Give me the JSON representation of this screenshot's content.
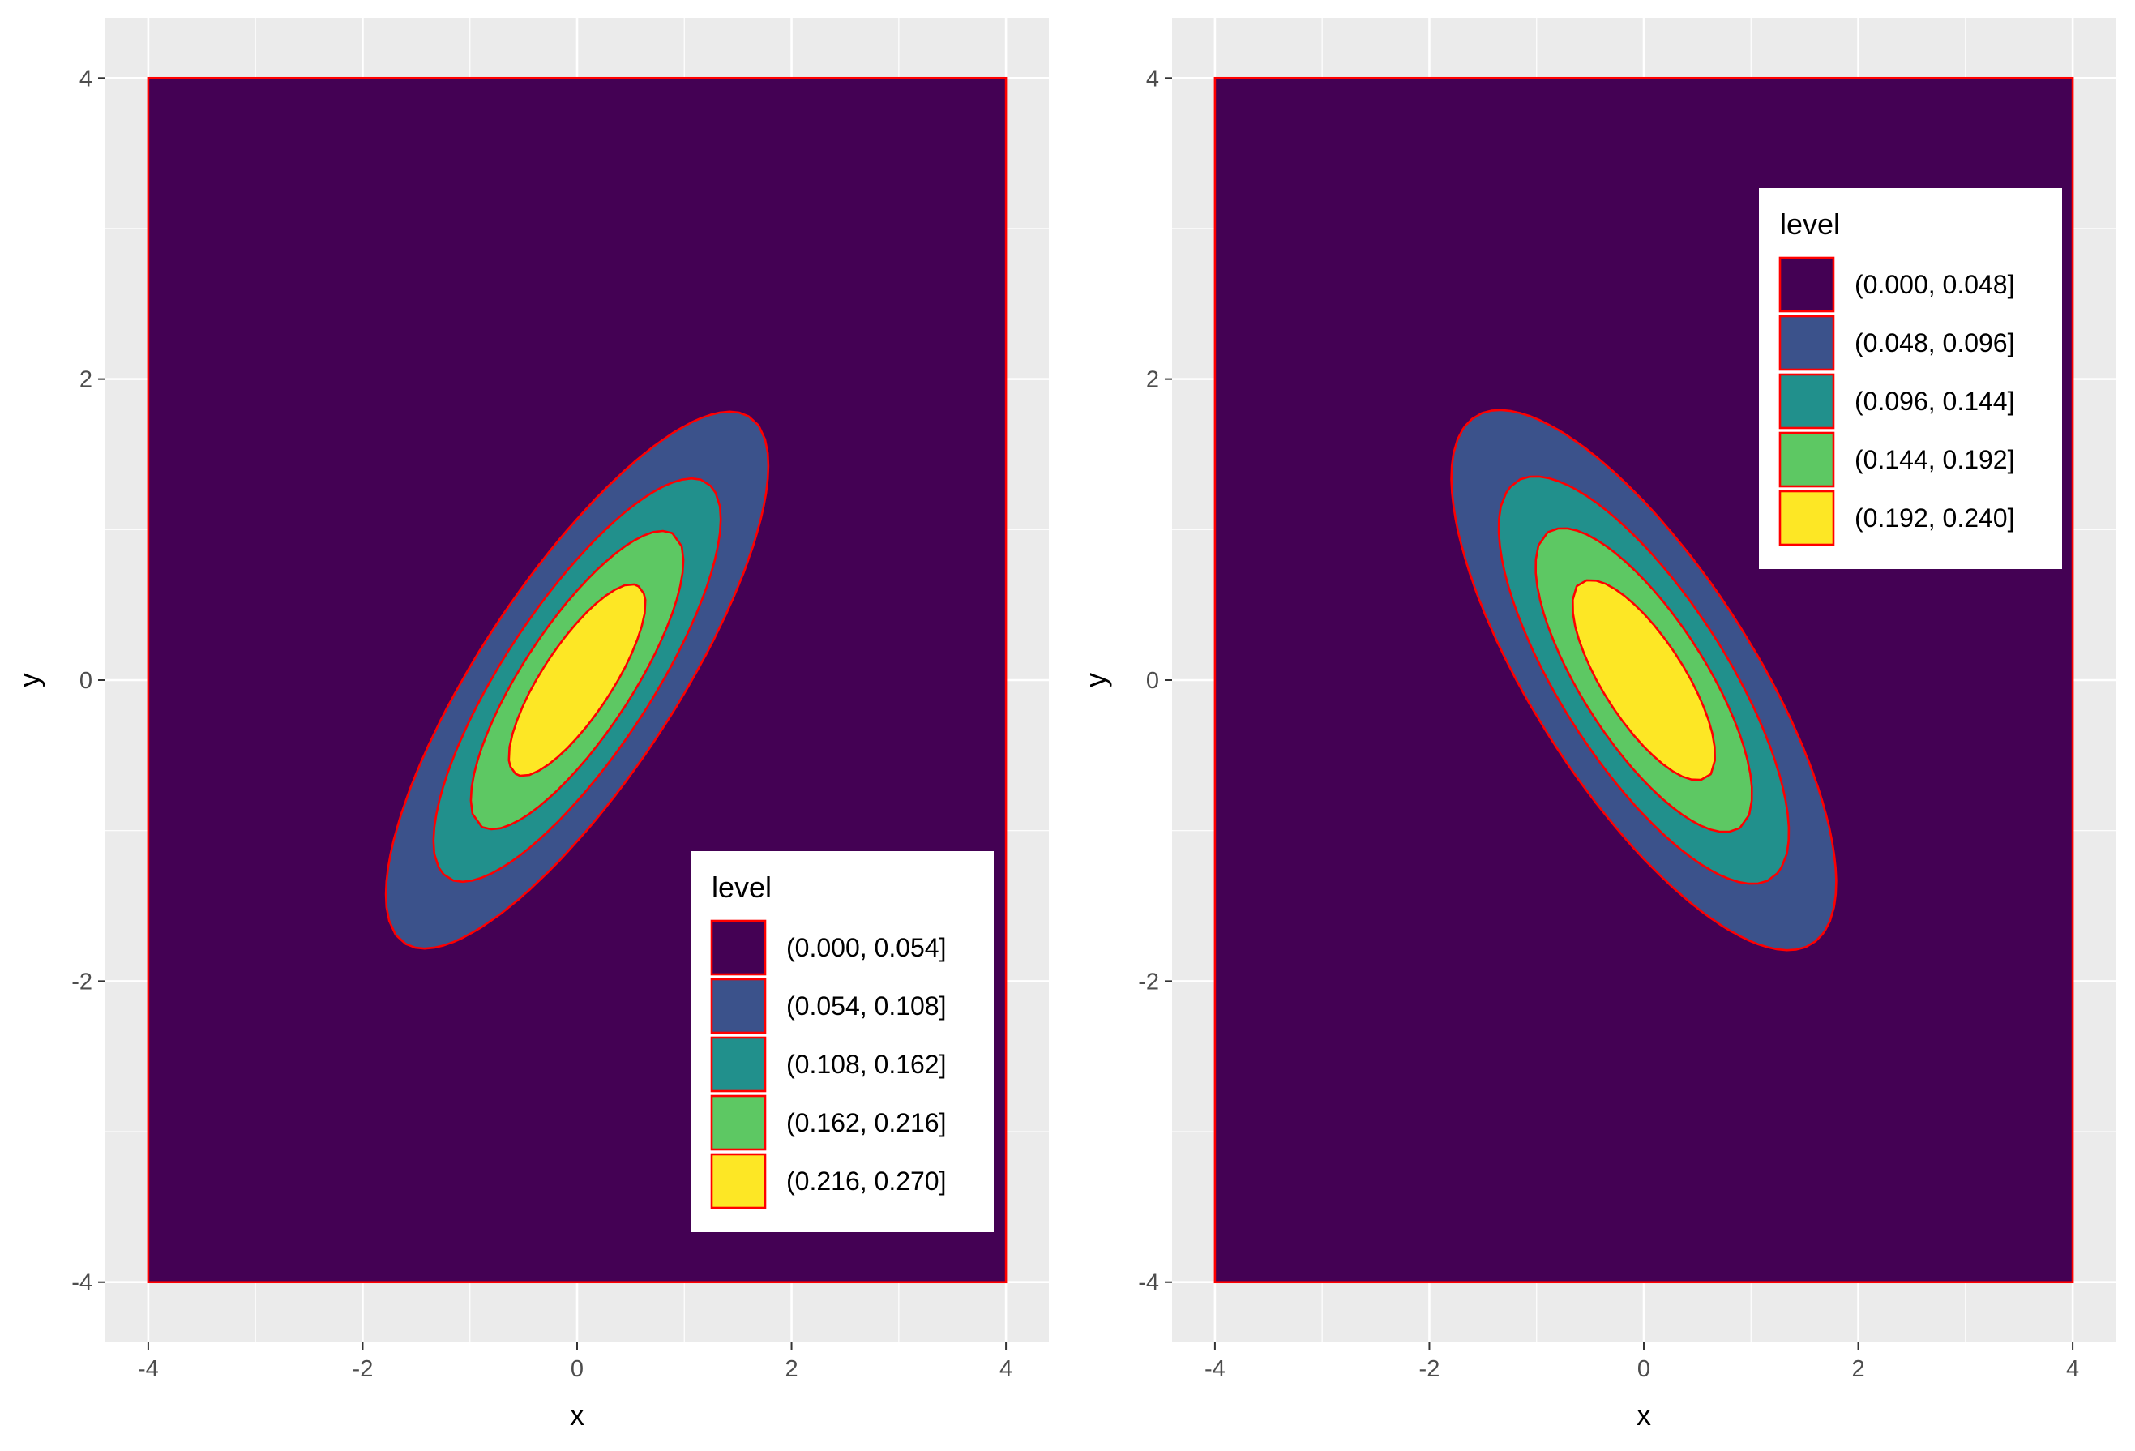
{
  "chart_data": [
    {
      "type": "filled-contour",
      "xlabel": "x",
      "ylabel": "y",
      "xlim": [
        -4.4,
        4.4
      ],
      "ylim": [
        -4.4,
        4.4
      ],
      "x_ticks": [
        -4,
        -2,
        0,
        2,
        4
      ],
      "y_ticks": [
        -4,
        -2,
        0,
        2,
        4
      ],
      "x_tick_labels": [
        "-4",
        "-2",
        "0",
        "2",
        "4"
      ],
      "y_tick_labels": [
        "-4",
        "-2",
        "0",
        "2",
        "4"
      ],
      "grid": true,
      "data_extent": {
        "x": [
          -4,
          4
        ],
        "y": [
          -4,
          4
        ]
      },
      "density": {
        "distribution": "bivariate normal",
        "mean": [
          0,
          0
        ],
        "correlation": 0.8,
        "peak_level": 0.265
      },
      "legend": {
        "title": "level",
        "placement": "bottom-right inside",
        "entries": [
          {
            "label": "(0.000, 0.054]",
            "color": "#440154"
          },
          {
            "label": "(0.054, 0.108]",
            "color": "#3B528B"
          },
          {
            "label": "(0.108, 0.162]",
            "color": "#21908C"
          },
          {
            "label": "(0.162, 0.216]",
            "color": "#5DC863"
          },
          {
            "label": "(0.216, 0.270]",
            "color": "#FDE725"
          }
        ]
      },
      "breaks": [
        0.054,
        0.108,
        0.162,
        0.216
      ],
      "outline_color": "#FF0000",
      "panel_background": "#EBEBEB",
      "gridline_color": "#FFFFFF"
    },
    {
      "type": "filled-contour",
      "xlabel": "x",
      "ylabel": "y",
      "xlim": [
        -4.4,
        4.4
      ],
      "ylim": [
        -4.4,
        4.4
      ],
      "x_ticks": [
        -4,
        -2,
        0,
        2,
        4
      ],
      "y_ticks": [
        -4,
        -2,
        0,
        2,
        4
      ],
      "x_tick_labels": [
        "-4",
        "-2",
        "0",
        "2",
        "4"
      ],
      "y_tick_labels": [
        "-4",
        "-2",
        "0",
        "2",
        "4"
      ],
      "grid": true,
      "data_extent": {
        "x": [
          -4,
          4
        ],
        "y": [
          -4,
          4
        ]
      },
      "density": {
        "distribution": "bivariate normal",
        "mean": [
          0,
          0
        ],
        "correlation": -0.75,
        "peak_level": 0.24
      },
      "legend": {
        "title": "level",
        "placement": "top-right inside",
        "entries": [
          {
            "label": "(0.000, 0.048]",
            "color": "#440154"
          },
          {
            "label": "(0.048, 0.096]",
            "color": "#3B528B"
          },
          {
            "label": "(0.096, 0.144]",
            "color": "#21908C"
          },
          {
            "label": "(0.144, 0.192]",
            "color": "#5DC863"
          },
          {
            "label": "(0.192, 0.240]",
            "color": "#FDE725"
          }
        ]
      },
      "breaks": [
        0.048,
        0.096,
        0.144,
        0.192
      ],
      "outline_color": "#FF0000",
      "panel_background": "#EBEBEB",
      "gridline_color": "#FFFFFF"
    }
  ]
}
